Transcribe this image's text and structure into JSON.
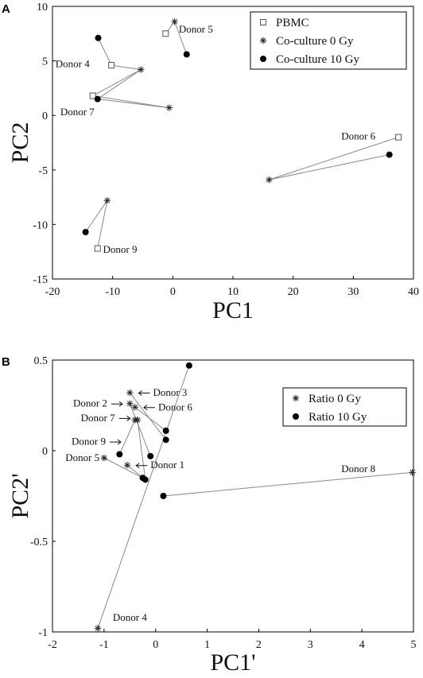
{
  "chart_data": [
    {
      "panel_label": "A",
      "type": "scatter",
      "xlabel": "PC1",
      "ylabel": "PC2",
      "xlim": [
        -20,
        40
      ],
      "ylim": [
        -15,
        10
      ],
      "xticks": [
        -20,
        -10,
        0,
        10,
        20,
        30,
        40
      ],
      "yticks": [
        -15,
        -10,
        -5,
        0,
        5,
        10
      ],
      "legend": {
        "position": "top-right"
      },
      "series": [
        {
          "name": "PBMC",
          "marker": "open-square",
          "points": [
            {
              "donor": "Donor 5",
              "x": -1.2,
              "y": 7.5
            },
            {
              "donor": "Donor 4",
              "x": -10.2,
              "y": 4.6
            },
            {
              "donor": "Donor 7",
              "x": -13.3,
              "y": 1.8
            },
            {
              "donor": "Donor 6",
              "x": 37.5,
              "y": -2.0
            },
            {
              "donor": "Donor 9",
              "x": -12.5,
              "y": -12.2
            }
          ]
        },
        {
          "name": "Co-culture 0 Gy",
          "marker": "asterisk",
          "points": [
            {
              "donor": "Donor 5",
              "x": 0.3,
              "y": 8.6
            },
            {
              "donor": "Donor 4",
              "x": -5.3,
              "y": 4.2
            },
            {
              "donor": "Donor 7",
              "x": -0.6,
              "y": 0.7
            },
            {
              "donor": "Donor 6",
              "x": 16.0,
              "y": -5.9
            },
            {
              "donor": "Donor 9",
              "x": -10.9,
              "y": -7.8
            }
          ]
        },
        {
          "name": "Co-culture 10 Gy",
          "marker": "filled-circle",
          "points": [
            {
              "donor": "Donor 5",
              "x": 2.3,
              "y": 5.6
            },
            {
              "donor": "Donor 4",
              "x": -12.4,
              "y": 7.1
            },
            {
              "donor": "Donor 7",
              "x": -12.5,
              "y": 1.5
            },
            {
              "donor": "Donor 6",
              "x": 36.0,
              "y": -3.6
            },
            {
              "donor": "Donor 9",
              "x": -14.5,
              "y": -10.7
            }
          ]
        }
      ],
      "connections": [
        {
          "x": [
            -1.2,
            0.3,
            2.3
          ],
          "y": [
            7.5,
            8.6,
            5.6
          ]
        },
        {
          "x": [
            -12.4,
            -10.2,
            -5.3,
            -13.3,
            -0.6,
            -12.5,
            -5.3
          ],
          "y": [
            7.1,
            4.6,
            4.2,
            1.8,
            0.7,
            1.5,
            4.2
          ]
        },
        {
          "x": [
            37.5,
            16.0,
            36.0
          ],
          "y": [
            -2.0,
            -5.9,
            -3.6
          ]
        },
        {
          "x": [
            -14.5,
            -10.9,
            -12.5
          ],
          "y": [
            -10.7,
            -7.8,
            -12.2
          ]
        }
      ],
      "annotations": [
        {
          "text": "Donor 5",
          "x": 1.0,
          "y": 7.9
        },
        {
          "text": "Donor 4",
          "x": -19.5,
          "y": 4.7
        },
        {
          "text": "Donor 7",
          "x": -18.7,
          "y": 0.3
        },
        {
          "text": "Donor 6",
          "x": 28.0,
          "y": -1.9
        },
        {
          "text": "Donor 9",
          "x": -11.6,
          "y": -12.3
        }
      ]
    },
    {
      "panel_label": "B",
      "type": "scatter",
      "xlabel": "PC1'",
      "ylabel": "PC2'",
      "xlim": [
        -2,
        5
      ],
      "ylim": [
        -1,
        0.5
      ],
      "xticks": [
        -2,
        -1,
        0,
        1,
        2,
        3,
        4,
        5
      ],
      "yticks": [
        -1,
        -0.5,
        0,
        0.5
      ],
      "legend": {
        "position": "top-right"
      },
      "series": [
        {
          "name": "Ratio 0 Gy",
          "marker": "asterisk",
          "points": [
            {
              "donor": "Donor 3",
              "x": -0.5,
              "y": 0.32
            },
            {
              "donor": "Donor 2",
              "x": -0.5,
              "y": 0.26
            },
            {
              "donor": "Donor 6",
              "x": -0.4,
              "y": 0.24
            },
            {
              "donor": "Donor 7",
              "x": -0.4,
              "y": 0.17
            },
            {
              "donor": "Donor 7",
              "x": -0.35,
              "y": 0.17
            },
            {
              "donor": "Donor 5",
              "x": -1.0,
              "y": -0.04
            },
            {
              "donor": "Donor 1",
              "x": -0.55,
              "y": -0.08
            },
            {
              "donor": "Donor 8",
              "x": 4.98,
              "y": -0.12
            },
            {
              "donor": "Donor 4",
              "x": -1.12,
              "y": -0.98
            }
          ]
        },
        {
          "name": "Ratio 10 Gy",
          "marker": "filled-circle",
          "points": [
            {
              "x": 0.65,
              "y": 0.47
            },
            {
              "x": 0.2,
              "y": 0.11
            },
            {
              "x": 0.2,
              "y": 0.06
            },
            {
              "x": -0.7,
              "y": -0.02
            },
            {
              "x": -0.1,
              "y": -0.03
            },
            {
              "x": -0.25,
              "y": -0.15
            },
            {
              "x": -0.2,
              "y": -0.16
            },
            {
              "x": 0.15,
              "y": -0.25
            }
          ]
        }
      ],
      "connections": [
        {
          "x": [
            -0.5,
            0.2
          ],
          "y": [
            0.32,
            0.06
          ]
        },
        {
          "x": [
            -0.5,
            -0.1
          ],
          "y": [
            0.26,
            -0.03
          ]
        },
        {
          "x": [
            -0.4,
            0.2
          ],
          "y": [
            0.24,
            0.11
          ]
        },
        {
          "x": [
            -0.4,
            -0.7
          ],
          "y": [
            0.17,
            -0.02
          ]
        },
        {
          "x": [
            -0.35,
            -0.2
          ],
          "y": [
            0.17,
            -0.16
          ]
        },
        {
          "x": [
            -1.0,
            -0.25
          ],
          "y": [
            -0.04,
            -0.15
          ]
        },
        {
          "x": [
            -0.55,
            -0.2
          ],
          "y": [
            -0.08,
            -0.16
          ]
        },
        {
          "x": [
            4.98,
            0.15
          ],
          "y": [
            -0.12,
            -0.25
          ]
        },
        {
          "x": [
            -1.12,
            0.65
          ],
          "y": [
            -0.98,
            0.47
          ]
        }
      ],
      "annotations": [
        {
          "text": "Donor 3",
          "x": -0.05,
          "y": 0.32,
          "arrow": "left",
          "ax": -0.48
        },
        {
          "text": "Donor 2",
          "x": -1.6,
          "y": 0.26,
          "arrow": "right",
          "ax": -0.55
        },
        {
          "text": "Donor 6",
          "x": 0.05,
          "y": 0.24,
          "arrow": "left",
          "ax": -0.38
        },
        {
          "text": "Donor 7",
          "x": -1.45,
          "y": 0.18,
          "arrow": "right",
          "ax": -0.44
        },
        {
          "text": "Donor 9",
          "x": -1.63,
          "y": 0.05,
          "arrow": "right",
          "ax": -0.58
        },
        {
          "text": "Donor 5",
          "x": -1.75,
          "y": -0.04
        },
        {
          "text": "Donor 1",
          "x": -0.1,
          "y": -0.08,
          "arrow": "left",
          "ax": -0.5
        },
        {
          "text": "Donor 8",
          "x": 3.6,
          "y": -0.1
        },
        {
          "text": "Donor 4",
          "x": -0.83,
          "y": -0.92
        }
      ]
    }
  ]
}
